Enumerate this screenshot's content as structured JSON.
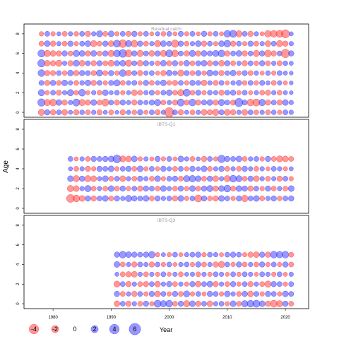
{
  "chart_data": {
    "type": "scatter",
    "subtype": "bubble-residuals",
    "ylabel": "Age",
    "xticks": [
      1980,
      1990,
      2000,
      2010,
      2020
    ],
    "yticks": [
      0,
      2,
      4,
      6,
      8
    ],
    "colors": {
      "positive": "#4444ff",
      "negative": "#ff4444"
    },
    "legend": {
      "title": "Year",
      "entries": [
        {
          "value": -4,
          "label": "-4"
        },
        {
          "value": -2,
          "label": "-2"
        },
        {
          "value": 0,
          "label": "0"
        },
        {
          "value": 2,
          "label": "2"
        },
        {
          "value": 4,
          "label": "4"
        },
        {
          "value": 6,
          "label": "6"
        }
      ]
    },
    "panels": [
      {
        "title": "Residual catch",
        "xlim": [
          1975,
          2024
        ],
        "ylim": [
          -0.5,
          9
        ],
        "ages": [
          0,
          1,
          2,
          3,
          4,
          5,
          6,
          7,
          8
        ],
        "years": [
          1978,
          2021
        ],
        "rows": [
          [
            -1.5,
            1.0,
            -1.0,
            0.8,
            -1.2,
            0.5,
            -1.0,
            0.7,
            -0.8,
            0.6,
            -1.0,
            0.5,
            -0.8,
            0.4,
            -1.0,
            0.6,
            -0.7,
            1.0,
            -0.5,
            0.8,
            -1.0,
            0.6,
            -3.8,
            0.8,
            -1.0,
            0.5,
            -0.8,
            0.6,
            -1.2,
            -1.0,
            -1.5,
            0.9,
            -1.3,
            -1.0,
            0.6,
            -1.2,
            0.8,
            -0.7,
            0.6,
            -0.8,
            0.7,
            -0.6,
            0.8,
            0.6
          ],
          [
            2.2,
            -1.5,
            -1.8,
            1.2,
            -1.0,
            0.6,
            2.0,
            -1.5,
            -1.0,
            1.2,
            -0.9,
            -2.0,
            0.8,
            -1.0,
            1.0,
            0.6,
            -1.0,
            0.8,
            0.6,
            1.0,
            1.5,
            -0.8,
            0.6,
            -1.0,
            2.0,
            -0.9,
            1.8,
            -1.0,
            0.9,
            1.2,
            -1.0,
            1.5,
            0.8,
            -1.0,
            2.8,
            0.9,
            -1.8,
            -2.0,
            1.6,
            -1.0,
            0.8,
            -1.0,
            1.2,
            0.6
          ],
          [
            1.5,
            -0.6,
            0.8,
            -1.0,
            0.6,
            1.5,
            -0.7,
            1.8,
            -0.5,
            0.6,
            -0.8,
            1.2,
            0.5,
            0.8,
            -0.6,
            0.5,
            -1.2,
            -0.8,
            0.6,
            0.9,
            -0.6,
            0.8,
            1.2,
            -0.8,
            -1.5,
            2.0,
            -0.8,
            1.0,
            -0.6,
            0.8,
            0.6,
            -1.0,
            0.8,
            1.0,
            -0.6,
            0.8,
            -0.5,
            0.6,
            -0.8,
            -1.0,
            0.6,
            -0.8,
            0.5,
            0.4
          ],
          [
            0.8,
            -1.0,
            1.0,
            -0.8,
            1.2,
            0.6,
            -0.8,
            0.7,
            1.2,
            -1.0,
            0.8,
            -0.6,
            0.9,
            1.5,
            -0.8,
            0.6,
            0.8,
            -0.5,
            1.0,
            -0.8,
            0.6,
            1.2,
            -0.7,
            -1.0,
            0.8,
            -0.6,
            1.0,
            0.8,
            -1.2,
            0.6,
            -0.9,
            0.8,
            -0.5,
            0.6,
            1.0,
            -0.7,
            0.8,
            -0.6,
            0.9,
            0.5,
            -0.8,
            0.6,
            -0.5,
            0.4
          ],
          [
            1.8,
            -1.0,
            -0.9,
            0.8,
            -0.7,
            1.2,
            -1.0,
            1.0,
            0.8,
            -0.9,
            1.5,
            -0.8,
            1.0,
            -0.6,
            1.8,
            -1.2,
            0.8,
            -1.0,
            0.6,
            0.8,
            -0.5,
            -1.0,
            1.2,
            0.6,
            -1.5,
            0.9,
            -0.8,
            1.0,
            -0.6,
            1.4,
            0.8,
            -1.0,
            0.7,
            1.2,
            -0.6,
            0.9,
            -0.8,
            0.6,
            -0.5,
            0.7,
            -0.6,
            0.8,
            0.5,
            0.4
          ],
          [
            2.2,
            -1.2,
            -1.0,
            -1.5,
            0.6,
            -1.0,
            1.4,
            -1.2,
            0.8,
            -1.0,
            1.0,
            -0.8,
            -1.4,
            1.0,
            1.2,
            -1.6,
            0.8,
            -1.2,
            1.0,
            0.6,
            -0.8,
            1.2,
            -0.9,
            1.0,
            -0.6,
            1.2,
            -0.8,
            0.9,
            1.2,
            -1.0,
            0.8,
            -1.2,
            1.0,
            -0.8,
            0.6,
            -1.0,
            0.8,
            -0.7,
            1.0,
            -0.8,
            0.6,
            -0.9,
            0.7,
            0.5
          ],
          [
            2.0,
            -1.5,
            -1.2,
            -1.0,
            1.0,
            -0.8,
            1.5,
            1.2,
            -1.0,
            1.2,
            -0.8,
            1.0,
            -1.5,
            1.8,
            2.5,
            -2.0,
            1.0,
            -1.5,
            0.8,
            -1.2,
            1.0,
            -1.5,
            2.0,
            -1.8,
            0.8,
            -1.0,
            1.5,
            -1.0,
            1.2,
            0.9,
            1.4,
            1.8,
            -1.0,
            0.8,
            1.2,
            -1.0,
            0.8,
            -1.5,
            1.0,
            -1.8,
            -1.0,
            0.8,
            -3.0,
            1.0
          ],
          [
            -0.8,
            1.2,
            -1.0,
            0.6,
            -0.8,
            1.0,
            -0.6,
            0.8,
            1.2,
            -1.4,
            -0.8,
            1.0,
            -1.2,
            2.0,
            -2.5,
            1.5,
            -1.8,
            1.0,
            -0.8,
            0.6,
            -1.5,
            1.2,
            0.8,
            -2.2,
            1.0,
            -0.8,
            0.6,
            1.2,
            -1.0,
            0.8,
            -0.6,
            1.2,
            1.8,
            -1.0,
            0.8,
            -0.6,
            1.0,
            -0.8,
            0.6,
            -1.2,
            0.8,
            -1.5,
            -1.0,
            0.6
          ],
          [
            -0.6,
            0.8,
            -0.6,
            0.5,
            -0.8,
            0.6,
            -0.7,
            0.8,
            -1.0,
            0.6,
            1.4,
            -0.8,
            1.2,
            -0.6,
            0.8,
            -0.9,
            1.0,
            -0.6,
            0.8,
            -0.5,
            0.6,
            -0.7,
            0.8,
            -0.5,
            0.9,
            -0.6,
            0.8,
            -0.5,
            1.0,
            -0.6,
            0.8,
            -0.5,
            1.8,
            2.0,
            -1.5,
            0.8,
            -1.0,
            0.6,
            -0.5,
            -1.6,
            -1.8,
            -2.0,
            -2.8,
            0.5
          ]
        ]
      },
      {
        "title": "IBTS-Q1",
        "xlim": [
          1975,
          2024
        ],
        "ylim": [
          -0.5,
          9
        ],
        "ages": [
          1,
          2,
          3,
          4,
          5
        ],
        "years": [
          1983,
          2021
        ],
        "rows": [
          [
            -2.5,
            -1.8,
            -1.2,
            1.0,
            -1.0,
            0.8,
            1.2,
            -0.8,
            1.0,
            0.6,
            1.5,
            1.0,
            0.8,
            1.2,
            -0.8,
            1.0,
            0.6,
            0.8,
            -1.0,
            1.2,
            -0.6,
            0.8,
            -2.0,
            1.0,
            -0.8,
            -1.0,
            1.2,
            0.8,
            -0.6,
            1.0,
            -1.6,
            0.8,
            1.2,
            -0.8,
            0.6,
            1.0,
            -0.7,
            0.8,
            1.0
          ],
          [
            -1.5,
            -1.2,
            0.6,
            1.5,
            -0.8,
            0.6,
            -0.8,
            1.2,
            -0.8,
            1.0,
            -0.6,
            0.8,
            -1.0,
            1.0,
            0.8,
            -0.8,
            1.2,
            0.6,
            -0.8,
            1.0,
            -0.6,
            1.2,
            -0.8,
            1.0,
            1.4,
            -1.0,
            1.2,
            1.8,
            -0.9,
            1.2,
            1.0,
            -1.0,
            0.8,
            -0.6,
            1.0,
            -0.8,
            0.6,
            -0.8,
            1.2
          ],
          [
            1.2,
            -1.5,
            1.0,
            -1.5,
            -1.2,
            0.6,
            1.2,
            -0.8,
            0.8,
            -1.2,
            0.6,
            -0.8,
            1.0,
            0.6,
            -0.8,
            1.2,
            -0.6,
            0.8,
            1.0,
            -0.8,
            1.5,
            1.6,
            1.2,
            -0.8,
            1.0,
            -1.2,
            0.6,
            -1.5,
            1.8,
            1.4,
            -0.8,
            1.0,
            -1.2,
            0.6,
            -0.8,
            0.6,
            -1.0,
            0.8,
            -0.6
          ],
          [
            0.5,
            -0.8,
            0.6,
            -1.0,
            -0.6,
            1.0,
            0.8,
            1.2,
            -0.6,
            0.8,
            1.0,
            -0.8,
            1.2,
            -0.6,
            0.8,
            -0.6,
            1.0,
            0.6,
            -0.8,
            0.8,
            -0.6,
            1.0,
            0.5,
            1.2,
            -0.8,
            0.6,
            1.0,
            -0.8,
            0.6,
            -0.8,
            1.0,
            0.6,
            -0.8,
            0.6,
            -0.5,
            0.8,
            0.6,
            -0.6,
            0.5
          ],
          [
            0.8,
            -0.5,
            0.6,
            -0.8,
            1.0,
            0.8,
            1.0,
            1.2,
            2.6,
            -1.4,
            -1.2,
            1.2,
            -0.6,
            0.6,
            -0.5,
            1.0,
            -0.6,
            0.8,
            -0.5,
            1.2,
            0.6,
            -0.8,
            0.5,
            -1.0,
            0.8,
            -0.6,
            2.2,
            1.0,
            0.8,
            1.2,
            -0.8,
            0.6,
            0.8,
            -0.6,
            1.0,
            -0.8,
            -1.4,
            -1.2,
            -0.8
          ]
        ]
      },
      {
        "title": "IBTS-Q3",
        "xlim": [
          1975,
          2024
        ],
        "ylim": [
          -0.5,
          9
        ],
        "ages": [
          0,
          1,
          2,
          3,
          4,
          5
        ],
        "years": [
          1991,
          2021
        ],
        "rows": [
          [
            -1.2,
            0.8,
            -1.0,
            0.6,
            -0.8,
            1.0,
            -0.6,
            2.0,
            1.5,
            1.8,
            -0.8,
            1.0,
            -1.5,
            1.2,
            -1.0,
            0.8,
            -1.2,
            0.6,
            0.8,
            -0.6,
            1.2,
            -0.8,
            1.5,
            1.8,
            2.0,
            1.2,
            -1.0,
            -2.0,
            -1.5,
            1.0,
            -0.8
          ],
          [
            1.0,
            -0.8,
            0.6,
            -1.0,
            0.8,
            -0.6,
            1.0,
            -1.2,
            0.8,
            -0.6,
            1.0,
            -0.8,
            1.4,
            -0.6,
            0.8,
            -0.5,
            1.0,
            0.8,
            -0.6,
            1.2,
            0.6,
            -0.8,
            1.0,
            -1.2,
            0.8,
            -0.6,
            1.0,
            0.8,
            -0.6,
            1.2,
            0.8
          ],
          [
            -1.4,
            0.8,
            -1.0,
            0.6,
            -0.8,
            -1.0,
            0.8,
            -1.2,
            0.6,
            1.0,
            -0.8,
            0.6,
            -0.6,
            1.0,
            -1.2,
            0.8,
            1.2,
            -1.0,
            0.6,
            -0.8,
            1.0,
            -0.6,
            0.8,
            -1.0,
            0.6,
            -0.8,
            -1.5,
            1.0,
            0.8,
            -0.6,
            0.8
          ],
          [
            0.5,
            -0.8,
            -1.0,
            -1.2,
            0.6,
            -0.8,
            0.6,
            -0.6,
            0.8,
            -0.5,
            0.6,
            -0.8,
            0.5,
            0.6,
            -0.8,
            0.6,
            -0.6,
            0.8,
            0.6,
            -0.5,
            0.8,
            -0.6,
            0.8,
            0.6,
            -0.5,
            0.8,
            0.6,
            -0.6,
            0.8,
            -0.5,
            0.6
          ],
          [
            1.2,
            -0.8,
            0.6,
            -1.0,
            0.8,
            0.6,
            -1.0,
            0.8,
            -0.6,
            0.8,
            -0.5,
            0.6,
            0.8,
            -0.6,
            1.0,
            -0.8,
            0.6,
            -1.0,
            -1.5,
            0.8,
            -0.6,
            1.0,
            -0.8,
            0.6,
            -0.8,
            1.0,
            -0.6,
            0.8,
            -0.6,
            1.0,
            -0.8
          ],
          [
            1.0,
            1.8,
            1.2,
            1.0,
            0.8,
            1.0,
            1.6,
            -0.6,
            0.5,
            -0.6,
            0.8,
            -0.5,
            0.6,
            0.8,
            1.0,
            -0.6,
            0.8,
            0.6,
            -0.5,
            0.8,
            1.0,
            0.8,
            -0.6,
            -1.0,
            -1.2,
            1.0,
            -1.0,
            1.8,
            1.6,
            1.8,
            -0.8
          ]
        ]
      }
    ]
  }
}
